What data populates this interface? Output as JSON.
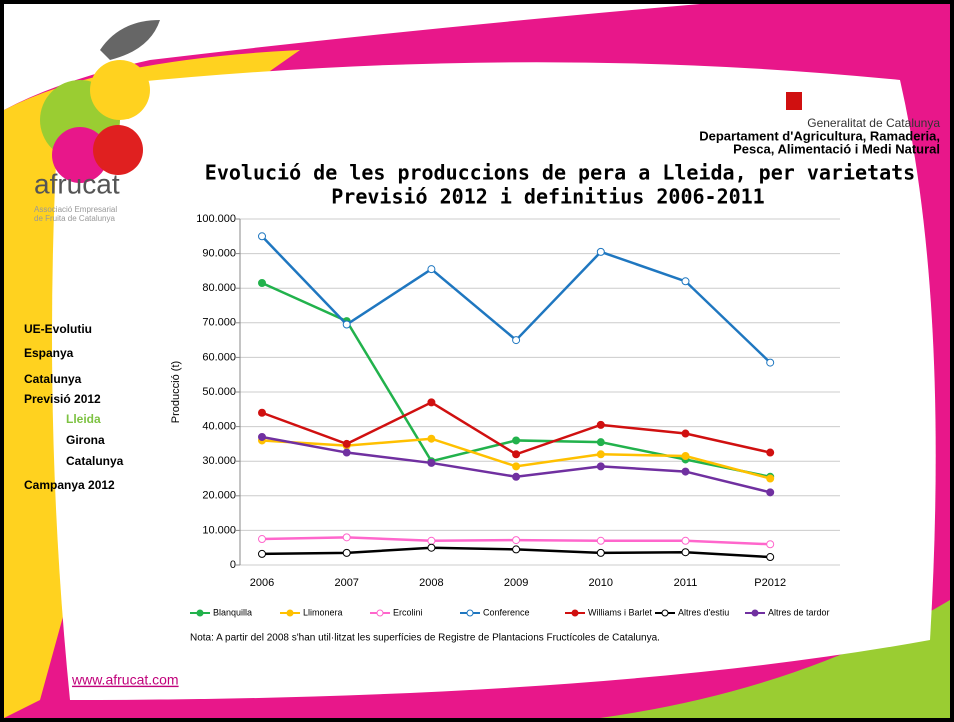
{
  "chart_data": {
    "type": "line",
    "title": "Evolució de les produccions de pera a Lleida, per varietats",
    "subtitle": "Previsió 2012 i definitius 2006-2011",
    "y_label": "Producció (t)",
    "categories": [
      "2006",
      "2007",
      "2008",
      "2009",
      "2010",
      "2011",
      "P2012"
    ],
    "series": [
      {
        "name": "Blanquilla",
        "color": "#22b24c",
        "values": [
          81500,
          70500,
          30000,
          36000,
          35500,
          30500,
          25500
        ]
      },
      {
        "name": "Llimonera",
        "color": "#ffc000",
        "values": [
          36000,
          34500,
          36500,
          28500,
          32000,
          31500,
          25000
        ]
      },
      {
        "name": "Ercolini",
        "color": "#ff66cc",
        "values": [
          7500,
          8000,
          7000,
          7200,
          7000,
          7000,
          6000
        ]
      },
      {
        "name": "Conference",
        "color": "#1f77c0",
        "values": [
          95000,
          69500,
          85500,
          65000,
          90500,
          82000,
          58500
        ]
      },
      {
        "name": "Williams i Barlet",
        "color": "#d01010",
        "values": [
          44000,
          35000,
          47000,
          32000,
          40500,
          38000,
          32500
        ]
      },
      {
        "name": "Altres d'estiu",
        "color": "#000000",
        "values": [
          3200,
          3500,
          5000,
          4500,
          3500,
          3700,
          2300
        ]
      },
      {
        "name": "Altres de tardor",
        "color": "#7030a0",
        "values": [
          37000,
          32500,
          29500,
          25500,
          28500,
          27000,
          21000
        ]
      }
    ],
    "ylim": [
      0,
      100000
    ],
    "yticks": [
      0,
      {
        "value": 10000,
        "label": "10.000"
      },
      {
        "value": 20000,
        "label": "20.000"
      },
      {
        "value": 30000,
        "label": "30.000"
      },
      {
        "value": 40000,
        "label": "40.000"
      },
      {
        "value": 50000,
        "label": "50.000"
      },
      {
        "value": 60000,
        "label": "60.000"
      },
      {
        "value": 70000,
        "label": "70.000"
      },
      {
        "value": 80000,
        "label": "80.000"
      },
      {
        "value": 90000,
        "label": "90.000"
      },
      {
        "value": 100000,
        "label": "100.000"
      }
    ],
    "grid": true,
    "legend": "bottom",
    "note": "Nota: A partir del 2008 s'han util·litzat les superfícies de Registre de Plantacions Fructícoles de Catalunya."
  },
  "logo": {
    "name": "afrucat",
    "tagline1": "Associació Empresarial",
    "tagline2": "de Fruita de Catalunya"
  },
  "institution": {
    "line1": "Generalitat de Catalunya",
    "line2": "Departament d'Agricultura, Ramaderia,",
    "line3": "Pesca, Alimentació i Medi Natural"
  },
  "menu": [
    "UE-Evolutiu",
    "Espanya",
    "Catalunya",
    "Previsió 2012",
    "Lleida",
    "Girona",
    "Catalunya",
    "Campanya 2012"
  ],
  "url": "www.afrucat.com"
}
